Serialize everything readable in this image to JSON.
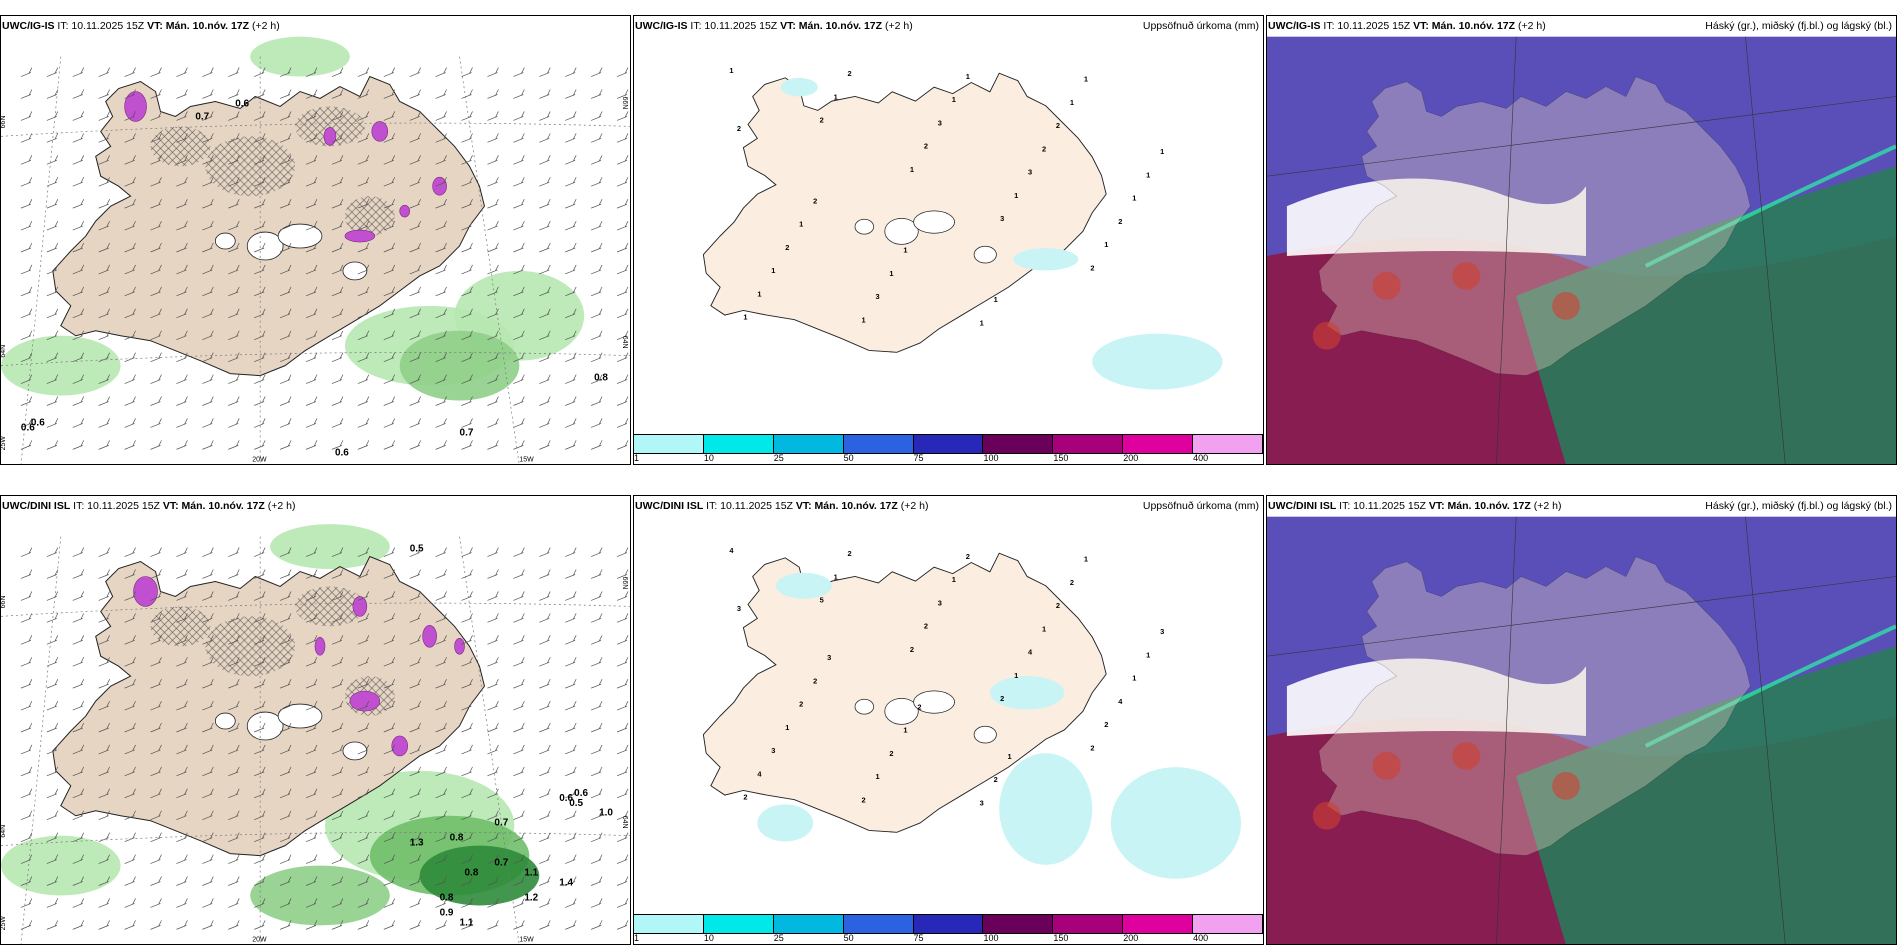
{
  "rows": [
    {
      "model": "UWC/IG-IS",
      "it_label": "IT: 10.11.2025 15Z",
      "vt_label": "VT: Mán. 10.nóv. 17Z",
      "offset": "(+2 h)",
      "precip_title": "Uppsöfnuð úrkoma (mm)",
      "cloud_title": "Háský (gr.), miðský (fj.bl.) og lágský (bl.)",
      "wind_values": [
        "0.7",
        "0.6",
        "0.8",
        "0.7",
        "0.6",
        "0.6",
        "0.6"
      ],
      "precip_values": [
        "1",
        "2",
        "1",
        "3",
        "2",
        "1",
        "1",
        "2",
        "1",
        "1",
        "1",
        "2",
        "3",
        "3",
        "2",
        "1",
        "1",
        "1",
        "2",
        "1",
        "2",
        "3",
        "1",
        "2",
        "1",
        "1",
        "1",
        "1",
        "1",
        "1",
        "2",
        "1",
        "1",
        "1",
        "2"
      ]
    },
    {
      "model": "UWC/DINI ISL",
      "it_label": "IT: 10.11.2025 15Z",
      "vt_label": "VT: Mán. 10.nóv. 17Z",
      "offset": "(+2 h)",
      "precip_title": "Uppsöfnuð úrkoma (mm)",
      "cloud_title": "Háský (gr.), miðský (fj.bl.) og lágský (bl.)",
      "wind_values": [
        "0.5",
        "0.6",
        "0.7",
        "0.8",
        "0.8",
        "0.9",
        "1.1",
        "1.2",
        "1.4",
        "1.0",
        "0.6",
        "0.5",
        "0.7",
        "0.8",
        "1.3",
        "1.1"
      ],
      "precip_values": [
        "4",
        "5",
        "2",
        "2",
        "2",
        "2",
        "1",
        "2",
        "1",
        "2",
        "4",
        "2",
        "3",
        "4",
        "4",
        "3",
        "2",
        "1",
        "1",
        "1",
        "1",
        "1",
        "2",
        "2",
        "1",
        "2",
        "2",
        "3",
        "2",
        "3",
        "2",
        "1",
        "2",
        "1",
        "3",
        "3",
        "2",
        "1"
      ]
    }
  ],
  "map_labels": {
    "lat_top": "66N",
    "lat_bottom": "64N",
    "lon_west": "25W",
    "lon_mid": "20W",
    "lon_east": "15W",
    "lat_top_right": "66N",
    "lat_bottom_right": "64N"
  },
  "colorbar": {
    "labels": [
      "1",
      "10",
      "25",
      "50",
      "75",
      "100",
      "150",
      "200",
      "400"
    ],
    "colors": [
      "#b2f7f7",
      "#00e8e8",
      "#00b8e0",
      "#2a62e0",
      "#2828b8",
      "#6a005a",
      "#a8007a",
      "#e000a0",
      "#f2a0f0"
    ]
  },
  "colors": {
    "land": "#e6d5c3",
    "precip_land": "#fbeee0",
    "wind_green": "#b6e8b0",
    "wind_green_dark": "#2e8b3a",
    "snow_magenta": "#c050d0",
    "high_cloud": "#5a4fb8",
    "mid_cloud": "#8a1a4a",
    "low_cloud": "#2a7a5a"
  }
}
